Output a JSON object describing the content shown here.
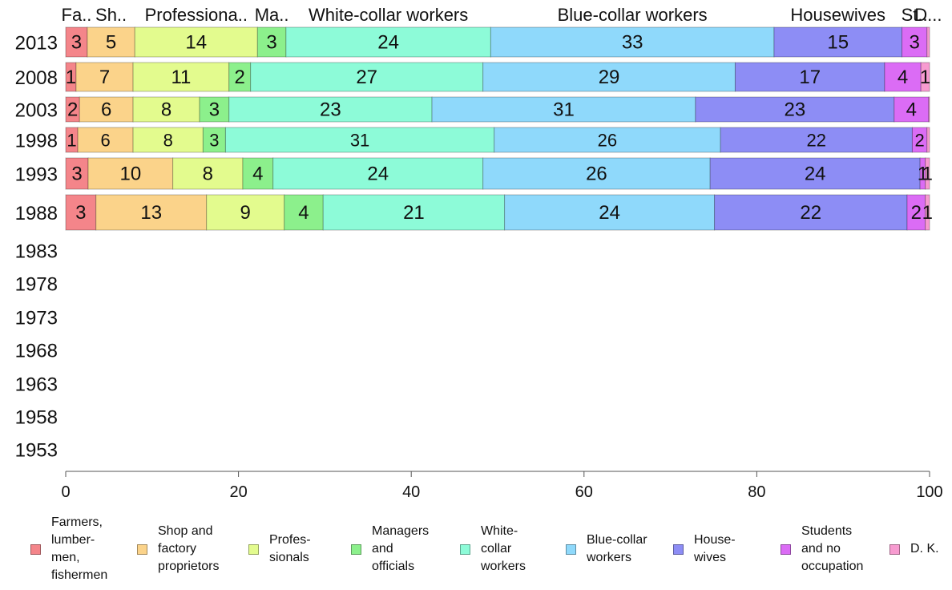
{
  "chart_data": {
    "type": "bar",
    "orientation": "horizontal",
    "stacked": true,
    "categories": [
      "2013",
      "2008",
      "2003",
      "1998",
      "1993",
      "1988",
      "1983",
      "1978",
      "1973",
      "1968",
      "1963",
      "1958",
      "1953"
    ],
    "xlim": [
      0,
      100
    ],
    "xticks": [
      "0",
      "20",
      "40",
      "60",
      "80",
      "100"
    ],
    "grid": false,
    "legend_position": "bottom",
    "top_labels": [
      "Fa..",
      "Sh..",
      "Professiona..",
      "Ma..",
      "White-collar workers",
      "Blue-collar workers",
      "Housewives",
      "St..",
      "D..."
    ],
    "series": [
      {
        "name": "Farmers, lumbermen, fishermen",
        "legend_label": "Farmers,\nlumber-\nmen,\nfishermen",
        "color": "#f4858a",
        "values": [
          2.5,
          1.2,
          1.6,
          1.4,
          2.6,
          3.5,
          null,
          null,
          null,
          null,
          null,
          null,
          null
        ],
        "labels": [
          "3",
          "1",
          "2",
          "1",
          "3",
          "3",
          "",
          "",
          "",
          "",
          "",
          "",
          ""
        ]
      },
      {
        "name": "Shop and factory proprietors",
        "legend_label": "Shop and\nfactory\nproprietors",
        "color": "#fbd38a",
        "values": [
          5.5,
          6.6,
          6.2,
          6.4,
          9.8,
          12.8,
          null,
          null,
          null,
          null,
          null,
          null,
          null
        ],
        "labels": [
          "5",
          "7",
          "6",
          "6",
          "10",
          "13",
          "",
          "",
          "",
          "",
          "",
          "",
          ""
        ]
      },
      {
        "name": "Professionals",
        "legend_label": "Profes-\nsionals",
        "color": "#e3fb8e",
        "values": [
          14.2,
          11.1,
          7.7,
          8.1,
          8.1,
          9.0,
          null,
          null,
          null,
          null,
          null,
          null,
          null
        ],
        "labels": [
          "14",
          "11",
          "8",
          "8",
          "8",
          "9",
          "",
          "",
          "",
          "",
          "",
          "",
          ""
        ]
      },
      {
        "name": "Managers and officials",
        "legend_label": "Managers\nand\nofficials",
        "color": "#8cf08c",
        "values": [
          3.3,
          2.5,
          3.4,
          2.6,
          3.5,
          4.5,
          null,
          null,
          null,
          null,
          null,
          null,
          null
        ],
        "labels": [
          "3",
          "2",
          "3",
          "3",
          "4",
          "4",
          "",
          "",
          "",
          "",
          "",
          "",
          ""
        ]
      },
      {
        "name": "White-collar workers",
        "legend_label": "White-\ncollar\nworkers",
        "color": "#8dfbd8",
        "values": [
          23.7,
          26.9,
          23.5,
          31.1,
          24.3,
          21.0,
          null,
          null,
          null,
          null,
          null,
          null,
          null
        ],
        "labels": [
          "24",
          "27",
          "23",
          "31",
          "24",
          "21",
          "",
          "",
          "",
          "",
          "",
          "",
          ""
        ]
      },
      {
        "name": "Blue-collar workers",
        "legend_label": "Blue-collar\nworkers",
        "color": "#8fd9fb",
        "values": [
          32.8,
          29.2,
          30.5,
          26.2,
          26.3,
          24.3,
          null,
          null,
          null,
          null,
          null,
          null,
          null
        ],
        "labels": [
          "33",
          "29",
          "31",
          "26",
          "26",
          "24",
          "",
          "",
          "",
          "",
          "",
          "",
          ""
        ]
      },
      {
        "name": "Housewives",
        "legend_label": "House-\nwives",
        "color": "#8d8df5",
        "values": [
          14.8,
          17.3,
          23.0,
          22.2,
          24.3,
          22.3,
          null,
          null,
          null,
          null,
          null,
          null,
          null
        ],
        "labels": [
          "15",
          "17",
          "23",
          "22",
          "24",
          "22",
          "",
          "",
          "",
          "",
          "",
          "",
          ""
        ]
      },
      {
        "name": "Students and no occupation",
        "legend_label": "Students\nand no\noccupation",
        "color": "#db6cf5",
        "values": [
          2.9,
          4.2,
          4.0,
          1.7,
          0.6,
          2.1,
          null,
          null,
          null,
          null,
          null,
          null,
          null
        ],
        "labels": [
          "3",
          "4",
          "4",
          "2",
          "1",
          "2",
          "",
          "",
          "",
          "",
          "",
          "",
          ""
        ]
      },
      {
        "name": "D. K.",
        "legend_label": "D. K.",
        "color": "#f79bd0",
        "values": [
          0.3,
          1.0,
          0.1,
          0.3,
          0.5,
          0.5,
          null,
          null,
          null,
          null,
          null,
          null,
          null
        ],
        "labels": [
          "",
          "1",
          "",
          "",
          "1",
          "1",
          "",
          "",
          "",
          "",
          "",
          "",
          ""
        ]
      }
    ]
  }
}
